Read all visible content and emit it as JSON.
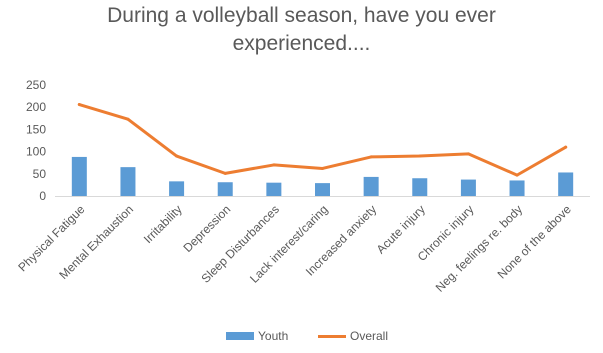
{
  "chart_data": {
    "type": "bar+line",
    "title_lines": [
      "During a volleyball season, have you ever",
      "experienced...."
    ],
    "categories": [
      "Physical Fatigue",
      "Mental Exhaustion",
      "Irritability",
      "Depression",
      "Sleep Disturbances",
      "Lack interest/caring",
      "Increased anxiety",
      "Acute injury",
      "Chronic injury",
      "Neg. feelings re. body",
      "None of the above"
    ],
    "ylim": [
      0,
      250
    ],
    "yticks": [
      "0",
      "50",
      "100",
      "150",
      "200",
      "250"
    ],
    "ytick_values": [
      0,
      50,
      100,
      150,
      200,
      250
    ],
    "series": [
      {
        "name": "Youth",
        "type": "bar",
        "color": "#5B9BD5",
        "values": [
          88,
          65,
          33,
          31,
          30,
          29,
          43,
          40,
          37,
          35,
          53
        ]
      },
      {
        "name": "Overall",
        "type": "line",
        "color": "#ED7D31",
        "values": [
          206,
          173,
          90,
          51,
          70,
          62,
          88,
          90,
          95,
          47,
          110
        ]
      }
    ],
    "grid": false,
    "legend": "bottom-center"
  }
}
